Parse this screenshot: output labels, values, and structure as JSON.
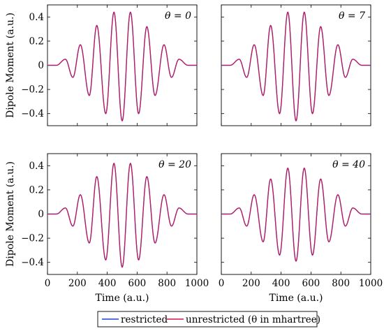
{
  "chart_data": [
    {
      "type": "line",
      "annotation": "θ = 0",
      "ylabel": "Dipole Moment (a.u.)",
      "xlabel": "",
      "xlim": [
        0,
        1000
      ],
      "ylim": [
        -0.5,
        0.5
      ],
      "yticks": [
        "0.4",
        "0.2",
        "0",
        "−0.2",
        "−0.4"
      ],
      "xticks": [],
      "series": [
        {
          "name": "restricted",
          "x": [
            0,
            60,
            120,
            170,
            220,
            280,
            330,
            390,
            445,
            500,
            555,
            610,
            665,
            720,
            780,
            830,
            880,
            940,
            1000
          ],
          "y": [
            0,
            0,
            0.05,
            -0.1,
            0.17,
            -0.25,
            0.33,
            -0.4,
            0.44,
            -0.46,
            0.44,
            -0.4,
            0.32,
            -0.25,
            0.17,
            -0.1,
            0.05,
            0,
            0
          ]
        },
        {
          "name": "unrestricted (θ in mhartree)",
          "x": [
            0,
            60,
            120,
            170,
            220,
            280,
            330,
            390,
            445,
            500,
            555,
            610,
            665,
            720,
            780,
            830,
            880,
            940,
            1000
          ],
          "y": [
            0,
            0,
            0.05,
            -0.1,
            0.17,
            -0.25,
            0.33,
            -0.4,
            0.44,
            -0.46,
            0.44,
            -0.4,
            0.32,
            -0.25,
            0.17,
            -0.1,
            0.05,
            0,
            0
          ]
        }
      ]
    },
    {
      "type": "line",
      "annotation": "θ = 7",
      "ylabel": "",
      "xlabel": "",
      "xlim": [
        0,
        1000
      ],
      "ylim": [
        -0.5,
        0.5
      ],
      "yticks": [],
      "xticks": [],
      "series": [
        {
          "name": "restricted",
          "x": [
            0,
            60,
            120,
            170,
            220,
            280,
            330,
            390,
            445,
            500,
            555,
            610,
            665,
            720,
            780,
            830,
            880,
            940,
            1000
          ],
          "y": [
            0,
            0,
            0.05,
            -0.1,
            0.17,
            -0.25,
            0.33,
            -0.4,
            0.44,
            -0.46,
            0.44,
            -0.4,
            0.32,
            -0.25,
            0.17,
            -0.1,
            0.05,
            0,
            0
          ]
        },
        {
          "name": "unrestricted (θ in mhartree)",
          "x": [
            0,
            60,
            120,
            170,
            220,
            280,
            330,
            390,
            445,
            500,
            555,
            610,
            665,
            720,
            780,
            830,
            880,
            940,
            1000
          ],
          "y": [
            0,
            0,
            0.05,
            -0.1,
            0.17,
            -0.25,
            0.33,
            -0.4,
            0.44,
            -0.46,
            0.44,
            -0.4,
            0.32,
            -0.25,
            0.17,
            -0.1,
            0.05,
            0,
            0
          ]
        }
      ]
    },
    {
      "type": "line",
      "annotation": "θ = 20",
      "ylabel": "Dipole Moment (a.u.)",
      "xlabel": "Time (a.u.)",
      "xlim": [
        0,
        1000
      ],
      "ylim": [
        -0.5,
        0.5
      ],
      "yticks": [
        "0.4",
        "0.2",
        "0",
        "−0.2",
        "−0.4"
      ],
      "xticks": [
        "0",
        "200",
        "400",
        "600",
        "800",
        "1000"
      ],
      "series": [
        {
          "name": "restricted",
          "x": [
            0,
            60,
            120,
            170,
            220,
            280,
            330,
            390,
            445,
            500,
            555,
            610,
            665,
            720,
            780,
            830,
            880,
            940,
            1000
          ],
          "y": [
            0,
            0,
            0.05,
            -0.1,
            0.16,
            -0.24,
            0.31,
            -0.38,
            0.42,
            -0.44,
            0.42,
            -0.38,
            0.31,
            -0.24,
            0.16,
            -0.1,
            0.05,
            0,
            0
          ]
        },
        {
          "name": "unrestricted (θ in mhartree)",
          "x": [
            0,
            60,
            120,
            170,
            220,
            280,
            330,
            390,
            445,
            500,
            555,
            610,
            665,
            720,
            780,
            830,
            880,
            940,
            1000
          ],
          "y": [
            0,
            0,
            0.05,
            -0.1,
            0.16,
            -0.24,
            0.31,
            -0.38,
            0.42,
            -0.44,
            0.42,
            -0.38,
            0.31,
            -0.24,
            0.16,
            -0.1,
            0.05,
            0,
            0
          ]
        }
      ]
    },
    {
      "type": "line",
      "annotation": "θ = 40",
      "ylabel": "",
      "xlabel": "Time (a.u.)",
      "xlim": [
        0,
        1000
      ],
      "ylim": [
        -0.5,
        0.5
      ],
      "yticks": [],
      "xticks": [
        "0",
        "200",
        "400",
        "600",
        "800",
        "1000"
      ],
      "series": [
        {
          "name": "restricted",
          "x": [
            0,
            60,
            120,
            170,
            220,
            280,
            330,
            390,
            445,
            500,
            555,
            610,
            665,
            720,
            780,
            830,
            880,
            940,
            1000
          ],
          "y": [
            0,
            0,
            0.05,
            -0.1,
            0.16,
            -0.23,
            0.29,
            -0.34,
            0.38,
            -0.39,
            0.38,
            -0.34,
            0.29,
            -0.23,
            0.16,
            -0.1,
            0.05,
            0,
            0
          ]
        },
        {
          "name": "unrestricted (θ in mhartree)",
          "x": [
            0,
            60,
            120,
            170,
            220,
            280,
            330,
            390,
            445,
            500,
            555,
            610,
            665,
            720,
            780,
            830,
            880,
            940,
            1000
          ],
          "y": [
            0,
            0,
            0.05,
            -0.1,
            0.16,
            -0.23,
            0.29,
            -0.34,
            0.38,
            -0.39,
            0.38,
            -0.34,
            0.29,
            -0.23,
            0.16,
            -0.1,
            0.05,
            0,
            0
          ]
        }
      ]
    }
  ],
  "legend": {
    "position": "bottom-center",
    "entries": [
      {
        "label": "restricted",
        "color": "#1f3fd6"
      },
      {
        "label": "unrestricted (θ in mhartree)",
        "color": "#d6124a"
      }
    ]
  },
  "colors": {
    "restricted": "#1f3fd6",
    "unrestricted": "#d6124a"
  }
}
